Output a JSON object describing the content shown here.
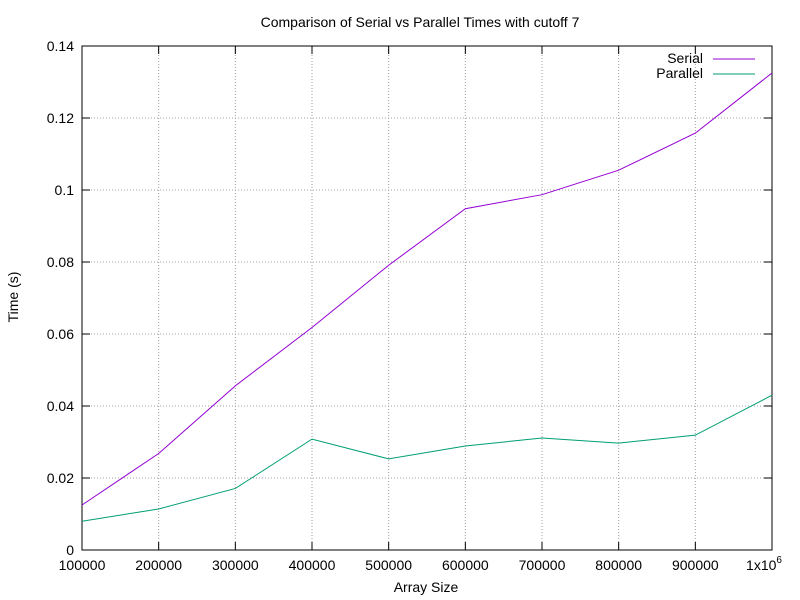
{
  "chart_data": {
    "type": "line",
    "title": "Comparison of Serial vs Parallel Times with cutoff 7",
    "xlabel": "Array Size",
    "ylabel": "Time (s)",
    "x": [
      100000,
      200000,
      300000,
      400000,
      500000,
      600000,
      700000,
      800000,
      900000,
      1000000
    ],
    "xlim": [
      100000,
      1000000
    ],
    "ylim": [
      0,
      0.14
    ],
    "x_ticks": [
      "100000",
      "200000",
      "300000",
      "400000",
      "500000",
      "600000",
      "700000",
      "800000",
      "900000"
    ],
    "x_last_tick": {
      "base": "1x10",
      "exponent": "6"
    },
    "y_ticks": [
      "0",
      "0.02",
      "0.04",
      "0.06",
      "0.08",
      "0.1",
      "0.12",
      "0.14"
    ],
    "grid": true,
    "legend_position": "top-right",
    "series": [
      {
        "name": "Serial",
        "color": "#9400d3",
        "values": [
          0.0125,
          0.0268,
          0.0456,
          0.0618,
          0.0791,
          0.0948,
          0.0987,
          0.1055,
          0.1158,
          0.1325
        ]
      },
      {
        "name": "Parallel",
        "color": "#009e73",
        "values": [
          0.008,
          0.0114,
          0.0171,
          0.0308,
          0.0253,
          0.0289,
          0.0311,
          0.0297,
          0.0319,
          0.043
        ]
      }
    ]
  }
}
